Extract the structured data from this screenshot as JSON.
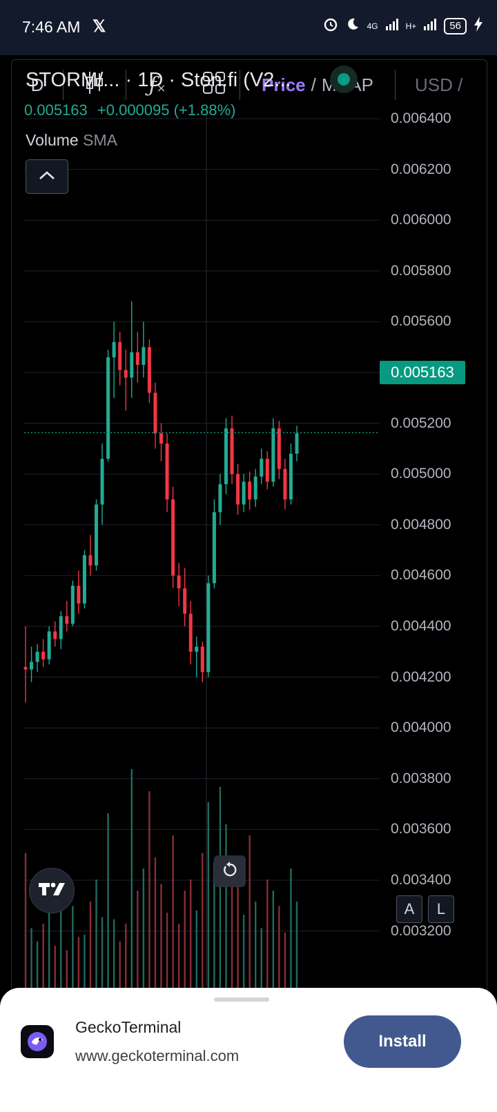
{
  "status_bar": {
    "time": "7:46 AM",
    "network": "4G",
    "signal2": "H+",
    "battery": "56"
  },
  "toolbar": {
    "interval": "D",
    "price_label": "Price",
    "separator": "/",
    "mcap_label": "MCAP",
    "currency": "USD /"
  },
  "legend": {
    "symbol": "STORM/... · 1D · Ston.fi (V2...",
    "price": "0.005163",
    "change": "+0.000095 (+1.88%)",
    "volume_label": "Volume",
    "volume_indicator": "SMA"
  },
  "axis": {
    "ticks": [
      "0.006400",
      "0.006200",
      "0.006000",
      "0.005800",
      "0.005600",
      "0.005400",
      "0.005200",
      "0.005000",
      "0.004800",
      "0.004600",
      "0.004400",
      "0.004200",
      "0.004000",
      "0.003800",
      "0.003600",
      "0.003400",
      "0.003200"
    ],
    "last_price_badge": "0.005163"
  },
  "buttons": {
    "auto": "A",
    "log": "L"
  },
  "colors": {
    "up": "#22ab94",
    "down": "#f23645",
    "accent": "#9b7cf8",
    "install": "#41598e"
  },
  "chart_data": {
    "type": "candlestick",
    "timeframe": "1D",
    "price_range": [
      0.0032,
      0.0064
    ],
    "last_price": 0.005163,
    "candles": [
      {
        "o": 0.00424,
        "h": 0.0044,
        "l": 0.0041,
        "c": 0.00423
      },
      {
        "o": 0.00423,
        "h": 0.00432,
        "l": 0.00418,
        "c": 0.00426
      },
      {
        "o": 0.00426,
        "h": 0.00433,
        "l": 0.00422,
        "c": 0.0043
      },
      {
        "o": 0.0043,
        "h": 0.00435,
        "l": 0.00424,
        "c": 0.00427
      },
      {
        "o": 0.00427,
        "h": 0.0044,
        "l": 0.00425,
        "c": 0.00438
      },
      {
        "o": 0.00438,
        "h": 0.00442,
        "l": 0.00432,
        "c": 0.00435
      },
      {
        "o": 0.00435,
        "h": 0.00446,
        "l": 0.00431,
        "c": 0.00444
      },
      {
        "o": 0.00444,
        "h": 0.0045,
        "l": 0.00438,
        "c": 0.00441
      },
      {
        "o": 0.00441,
        "h": 0.00458,
        "l": 0.0044,
        "c": 0.00456
      },
      {
        "o": 0.00456,
        "h": 0.00462,
        "l": 0.00445,
        "c": 0.00449
      },
      {
        "o": 0.00449,
        "h": 0.0047,
        "l": 0.00447,
        "c": 0.00468
      },
      {
        "o": 0.00468,
        "h": 0.00476,
        "l": 0.0046,
        "c": 0.00464
      },
      {
        "o": 0.00464,
        "h": 0.0049,
        "l": 0.00462,
        "c": 0.00488
      },
      {
        "o": 0.00488,
        "h": 0.00512,
        "l": 0.0048,
        "c": 0.00506
      },
      {
        "o": 0.00506,
        "h": 0.00549,
        "l": 0.00505,
        "c": 0.00546
      },
      {
        "o": 0.00546,
        "h": 0.0056,
        "l": 0.0053,
        "c": 0.00552
      },
      {
        "o": 0.00552,
        "h": 0.00556,
        "l": 0.00535,
        "c": 0.00541
      },
      {
        "o": 0.00541,
        "h": 0.00549,
        "l": 0.00525,
        "c": 0.00538
      },
      {
        "o": 0.00538,
        "h": 0.00568,
        "l": 0.0053,
        "c": 0.00548
      },
      {
        "o": 0.00548,
        "h": 0.00556,
        "l": 0.00536,
        "c": 0.00543
      },
      {
        "o": 0.00543,
        "h": 0.0056,
        "l": 0.00538,
        "c": 0.0055
      },
      {
        "o": 0.0055,
        "h": 0.00553,
        "l": 0.00528,
        "c": 0.00532
      },
      {
        "o": 0.00532,
        "h": 0.00536,
        "l": 0.0051,
        "c": 0.00516
      },
      {
        "o": 0.00516,
        "h": 0.0052,
        "l": 0.00505,
        "c": 0.00512
      },
      {
        "o": 0.00512,
        "h": 0.00516,
        "l": 0.00485,
        "c": 0.0049
      },
      {
        "o": 0.0049,
        "h": 0.00495,
        "l": 0.00455,
        "c": 0.0046
      },
      {
        "o": 0.0046,
        "h": 0.00465,
        "l": 0.00448,
        "c": 0.00455
      },
      {
        "o": 0.00455,
        "h": 0.00463,
        "l": 0.0044,
        "c": 0.00445
      },
      {
        "o": 0.00445,
        "h": 0.0045,
        "l": 0.00425,
        "c": 0.0043
      },
      {
        "o": 0.0043,
        "h": 0.00436,
        "l": 0.0042,
        "c": 0.00432
      },
      {
        "o": 0.00432,
        "h": 0.00434,
        "l": 0.00418,
        "c": 0.00422
      },
      {
        "o": 0.00422,
        "h": 0.0046,
        "l": 0.0042,
        "c": 0.00457
      },
      {
        "o": 0.00457,
        "h": 0.0049,
        "l": 0.00455,
        "c": 0.00485
      },
      {
        "o": 0.00485,
        "h": 0.005,
        "l": 0.0048,
        "c": 0.00496
      },
      {
        "o": 0.00496,
        "h": 0.00522,
        "l": 0.00492,
        "c": 0.00518
      },
      {
        "o": 0.00518,
        "h": 0.00523,
        "l": 0.00496,
        "c": 0.005
      },
      {
        "o": 0.005,
        "h": 0.00504,
        "l": 0.00484,
        "c": 0.00488
      },
      {
        "o": 0.00488,
        "h": 0.005,
        "l": 0.00485,
        "c": 0.00497
      },
      {
        "o": 0.00497,
        "h": 0.00501,
        "l": 0.00486,
        "c": 0.0049
      },
      {
        "o": 0.0049,
        "h": 0.00502,
        "l": 0.00487,
        "c": 0.00499
      },
      {
        "o": 0.00499,
        "h": 0.0051,
        "l": 0.00496,
        "c": 0.00506
      },
      {
        "o": 0.00506,
        "h": 0.00509,
        "l": 0.00494,
        "c": 0.00497
      },
      {
        "o": 0.00497,
        "h": 0.00522,
        "l": 0.00495,
        "c": 0.00518
      },
      {
        "o": 0.00518,
        "h": 0.00521,
        "l": 0.00498,
        "c": 0.00502
      },
      {
        "o": 0.00502,
        "h": 0.00506,
        "l": 0.00486,
        "c": 0.0049
      },
      {
        "o": 0.0049,
        "h": 0.00512,
        "l": 0.00488,
        "c": 0.00508
      },
      {
        "o": 0.00508,
        "h": 0.00519,
        "l": 0.00505,
        "c": 0.00516
      }
    ],
    "volume": [
      62,
      28,
      22,
      30,
      35,
      20,
      42,
      18,
      38,
      24,
      25,
      40,
      50,
      33,
      80,
      32,
      22,
      30,
      100,
      45,
      55,
      90,
      60,
      48,
      35,
      70,
      30,
      45,
      50,
      36,
      62,
      85,
      58,
      92,
      75,
      48,
      60,
      34,
      70,
      40,
      28,
      50,
      45,
      38,
      26,
      55,
      40
    ]
  },
  "install_sheet": {
    "app_name": "GeckoTerminal",
    "url": "www.geckoterminal.com",
    "install_label": "Install"
  }
}
